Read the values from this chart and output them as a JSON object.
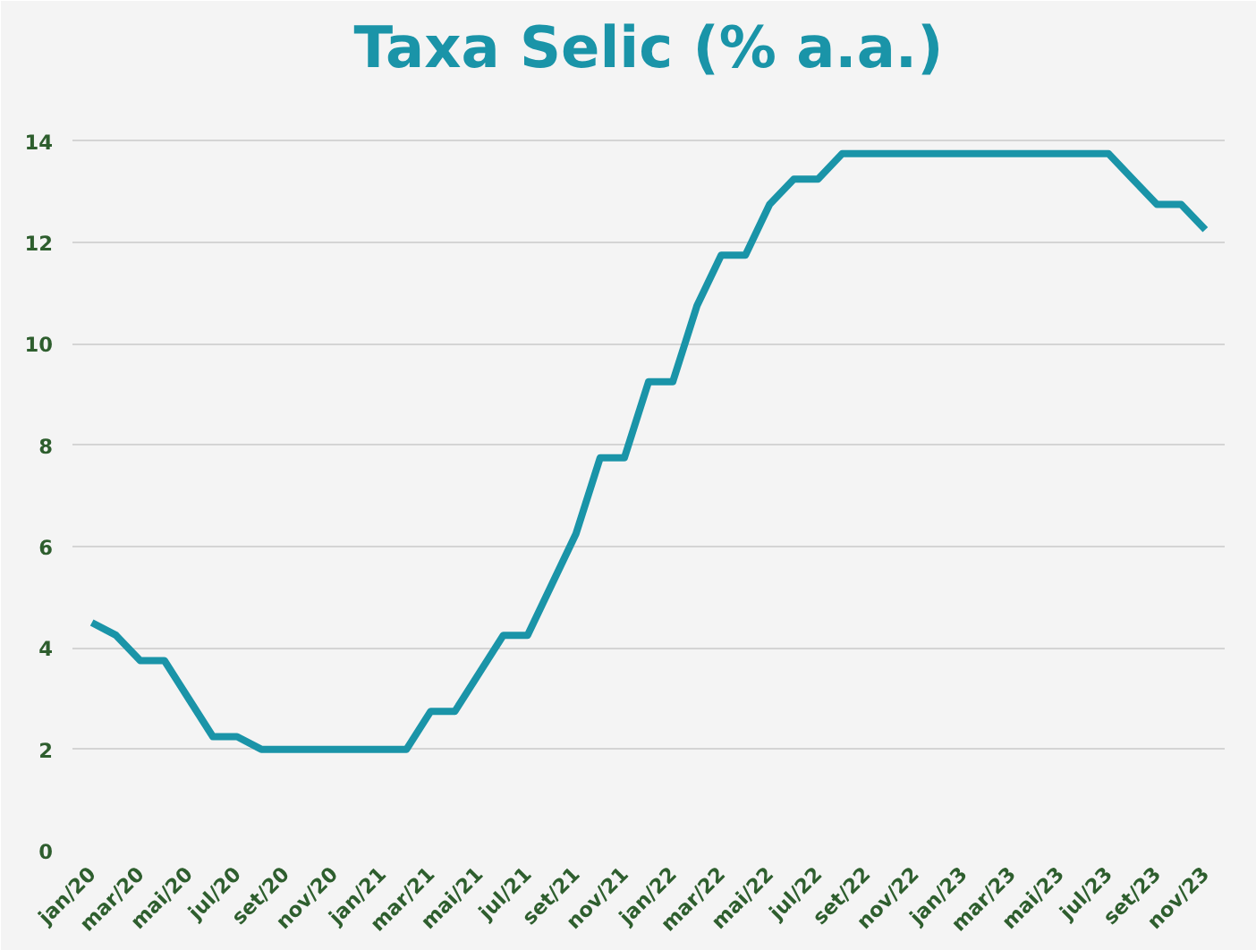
{
  "chart_data": {
    "type": "line",
    "title": "Taxa Selic (% a.a.)",
    "categories": [
      "jan/20",
      null,
      "mar/20",
      null,
      "mai/20",
      null,
      "jul/20",
      null,
      "set/20",
      null,
      "nov/20",
      null,
      "jan/21",
      null,
      "mar/21",
      null,
      "mai/21",
      null,
      "jul/21",
      null,
      "set/21",
      null,
      "nov/21",
      null,
      "jan/22",
      null,
      "mar/22",
      null,
      "mai/22",
      null,
      "jul/22",
      null,
      "set/22",
      null,
      "nov/22",
      null,
      "jan/23",
      null,
      "mar/23",
      null,
      "mai/23",
      null,
      "jul/23",
      null,
      "set/23",
      null,
      "nov/23"
    ],
    "series": [
      {
        "color": "#1a94a8",
        "values": [
          4.5,
          4.25,
          3.75,
          3.75,
          3.0,
          2.25,
          2.25,
          2.0,
          2.0,
          2.0,
          2.0,
          2.0,
          2.0,
          2.0,
          2.75,
          2.75,
          3.5,
          4.25,
          4.25,
          5.25,
          6.25,
          7.75,
          7.75,
          9.25,
          9.25,
          10.75,
          11.75,
          11.75,
          12.75,
          13.25,
          13.25,
          13.75,
          13.75,
          13.75,
          13.75,
          13.75,
          13.75,
          13.75,
          13.75,
          13.75,
          13.75,
          13.75,
          13.75,
          13.25,
          12.75,
          12.75,
          12.25
        ]
      }
    ],
    "ylim": [
      0,
      15
    ],
    "yticks": [
      0,
      2,
      4,
      6,
      8,
      10,
      12,
      14
    ],
    "grid": "y",
    "marker": "none",
    "line_style": "solid"
  }
}
